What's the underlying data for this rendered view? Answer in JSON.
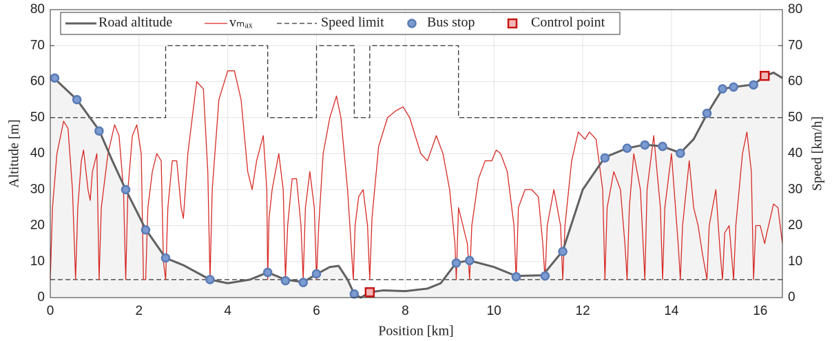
{
  "chart_data": {
    "type": "line",
    "xlabel": "Position [km]",
    "ylabel": "Altitude [m]",
    "y2label": "Speed [km/h]",
    "xlim": [
      0,
      16.5
    ],
    "xticks": [
      0,
      2,
      4,
      6,
      8,
      10,
      12,
      14,
      16
    ],
    "ylim": [
      0,
      80
    ],
    "yticks": [
      0,
      10,
      20,
      30,
      40,
      50,
      60,
      70,
      80
    ],
    "y2lim": [
      0,
      80
    ],
    "y2ticks": [
      0,
      10,
      20,
      30,
      40,
      50,
      60,
      70,
      80
    ],
    "grid": true,
    "legend": "upper left",
    "hlines": [
      {
        "value": 5,
        "axis": "y2",
        "color": "#333333",
        "style": "dashed"
      }
    ],
    "series": [
      {
        "name": "Road altitude",
        "type": "line",
        "color": "#606060",
        "fill": "#f3f3f3",
        "axis": "y",
        "x": [
          0,
          0.1,
          0.6,
          1.1,
          1.4,
          1.7,
          2.15,
          2.6,
          3,
          3.6,
          4,
          4.5,
          4.9,
          5.3,
          5.7,
          6,
          6.3,
          6.5,
          6.7,
          6.85,
          7.0,
          7.2,
          7.5,
          8,
          8.5,
          8.8,
          9.15,
          9.45,
          10,
          10.5,
          11.1,
          11.55,
          12,
          12.5,
          13,
          13.4,
          13.8,
          14.2,
          14.5,
          14.8,
          15.15,
          15.4,
          15.85,
          16.1,
          16.3,
          16.5
        ],
        "values": [
          61,
          60.8,
          55,
          46.5,
          38,
          30,
          19,
          11,
          9,
          5,
          4,
          5,
          7,
          5,
          4.3,
          6.5,
          8.5,
          8.8,
          5,
          1,
          0,
          1.5,
          2,
          1.8,
          2.5,
          4,
          9.7,
          10.3,
          8.5,
          6,
          6.2,
          13,
          30,
          39,
          41.5,
          42.5,
          42,
          40.2,
          44,
          51,
          58,
          58.5,
          59.2,
          61.5,
          62.5,
          61
        ]
      },
      {
        "name": "vₘₐₓ",
        "type": "line",
        "color": "#d62a25",
        "axis": "y2",
        "x": [
          0,
          0.05,
          0.15,
          0.3,
          0.4,
          0.5,
          0.57,
          0.62,
          0.7,
          0.75,
          0.85,
          0.9,
          0.95,
          1.05,
          1.1,
          1.15,
          1.3,
          1.45,
          1.55,
          1.65,
          1.7,
          1.75,
          1.85,
          1.95,
          2.05,
          2.1,
          2.15,
          2.2,
          2.3,
          2.4,
          2.5,
          2.55,
          2.6,
          2.65,
          2.75,
          2.85,
          2.95,
          3.0,
          3.1,
          3.3,
          3.45,
          3.55,
          3.6,
          3.65,
          3.8,
          4.0,
          4.15,
          4.3,
          4.45,
          4.55,
          4.65,
          4.8,
          4.88,
          4.9,
          4.93,
          5.0,
          5.15,
          5.25,
          5.3,
          5.35,
          5.45,
          5.55,
          5.65,
          5.7,
          5.75,
          5.85,
          5.95,
          6.0,
          6.05,
          6.15,
          6.3,
          6.45,
          6.55,
          6.7,
          6.83,
          6.87,
          6.95,
          7.05,
          7.15,
          7.2,
          7.25,
          7.4,
          7.6,
          7.8,
          7.95,
          8.1,
          8.2,
          8.35,
          8.5,
          8.7,
          8.85,
          9.0,
          9.12,
          9.15,
          9.2,
          9.3,
          9.4,
          9.45,
          9.5,
          9.65,
          9.8,
          9.95,
          10.05,
          10.15,
          10.3,
          10.45,
          10.5,
          10.55,
          10.7,
          10.85,
          11.0,
          11.1,
          11.15,
          11.2,
          11.35,
          11.5,
          11.55,
          11.6,
          11.75,
          11.9,
          12.05,
          12.15,
          12.3,
          12.45,
          12.5,
          12.55,
          12.7,
          12.85,
          12.95,
          13.0,
          13.05,
          13.15,
          13.3,
          13.4,
          13.45,
          13.6,
          13.75,
          13.8,
          13.85,
          14.0,
          14.15,
          14.2,
          14.25,
          14.4,
          14.5,
          14.6,
          14.7,
          14.8,
          14.85,
          15.0,
          15.1,
          15.15,
          15.2,
          15.3,
          15.4,
          15.45,
          15.6,
          15.7,
          15.8,
          15.85,
          15.9,
          16.0,
          16.1,
          16.15,
          16.3,
          16.4,
          16.5
        ],
        "values": [
          5,
          25,
          40,
          49,
          47,
          30,
          5,
          25,
          38,
          41,
          30,
          27,
          35,
          40,
          5,
          25,
          40,
          48,
          45,
          30,
          5,
          30,
          45,
          48,
          40,
          5,
          5,
          25,
          35,
          40,
          38,
          10,
          5,
          25,
          38,
          38,
          25,
          22,
          40,
          60,
          58,
          35,
          5,
          30,
          55,
          63,
          63,
          55,
          35,
          30,
          38,
          45,
          30,
          5,
          22,
          30,
          40,
          30,
          5,
          20,
          33,
          33,
          20,
          5,
          25,
          35,
          25,
          5,
          20,
          40,
          50,
          56,
          50,
          30,
          5,
          20,
          28,
          30,
          20,
          5,
          22,
          42,
          50,
          52,
          53,
          50,
          46,
          40,
          38,
          45,
          40,
          30,
          15,
          5,
          25,
          20,
          15,
          5,
          20,
          33,
          38,
          38,
          41,
          40,
          35,
          20,
          5,
          25,
          30,
          30,
          28,
          15,
          5,
          20,
          30,
          20,
          5,
          20,
          38,
          46,
          44,
          46,
          44,
          30,
          5,
          25,
          35,
          30,
          15,
          5,
          25,
          40,
          30,
          5,
          30,
          45,
          25,
          5,
          25,
          40,
          15,
          5,
          20,
          38,
          25,
          20,
          12,
          5,
          20,
          30,
          12,
          5,
          18,
          20,
          5,
          20,
          40,
          46,
          35,
          5,
          20,
          20,
          15,
          18,
          26,
          25,
          15
        ]
      },
      {
        "name": "Speed limit",
        "type": "line",
        "style": "dashed",
        "color": "#333333",
        "axis": "y2",
        "x": [
          0,
          2.6,
          2.6,
          4.9,
          4.9,
          6,
          6,
          6.85,
          6.85,
          7.2,
          7.2,
          9.2,
          9.2,
          16.5
        ],
        "values": [
          50,
          50,
          70,
          70,
          50,
          50,
          70,
          70,
          50,
          50,
          70,
          70,
          50,
          50
        ]
      },
      {
        "name": "Bus stop",
        "type": "scatter",
        "marker": "circle",
        "color": "#7b9bd1",
        "edge": "#5a7bb5",
        "axis": "y",
        "x": [
          0.1,
          0.6,
          1.1,
          1.7,
          2.15,
          2.6,
          3.6,
          4.9,
          5.3,
          5.7,
          6.0,
          6.85,
          9.15,
          9.45,
          10.5,
          11.15,
          11.55,
          12.5,
          13.0,
          13.4,
          13.8,
          14.2,
          14.8,
          15.15,
          15.4,
          15.85
        ],
        "values": [
          61,
          55,
          46.3,
          30,
          18.8,
          11,
          5,
          7,
          4.7,
          4.2,
          6.6,
          1,
          9.6,
          10.3,
          5.8,
          6,
          12.8,
          38.8,
          41.5,
          42.4,
          42,
          40.1,
          51.2,
          58,
          58.5,
          59.1
        ]
      },
      {
        "name": "Control point",
        "type": "scatter",
        "marker": "square",
        "color": "#f2b8b8",
        "edge": "#c81414",
        "axis": "y",
        "x": [
          7.2,
          16.1
        ],
        "values": [
          1.5,
          61.6
        ]
      }
    ]
  }
}
